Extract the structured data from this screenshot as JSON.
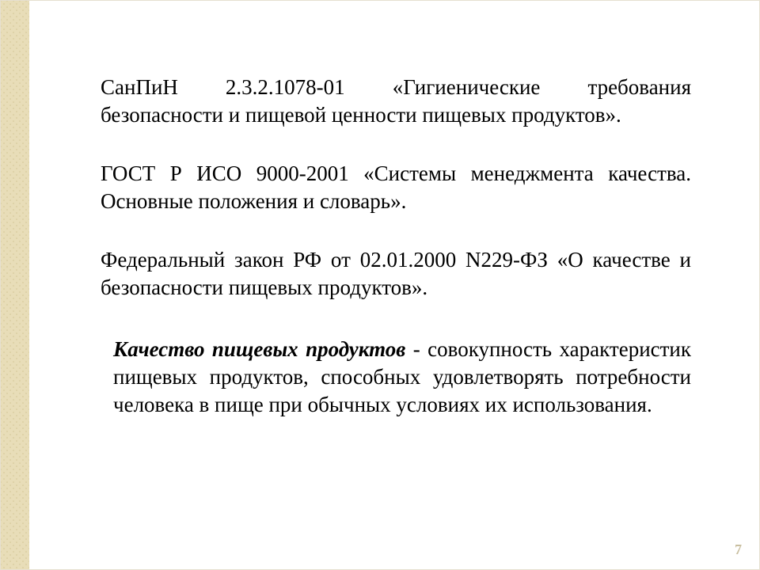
{
  "slide": {
    "sidebar_color": "#e8ddb8",
    "background_color": "#ffffff",
    "border_color": "#e6e0d0",
    "page_number": "7",
    "page_number_color": "#c9bfa0",
    "font_family": "Times New Roman",
    "body_fontsize_pt": 27,
    "text_color": "#000000"
  },
  "paragraphs": {
    "p1": "СанПиН 2.3.2.1078-01 «Гигиенические требования безопасности и пищевой ценности пищевых продуктов».",
    "p2": "ГОСТ Р ИСО 9000-2001 «Системы менеджмента качества. Основные положения и словарь».",
    "p3": "Федеральный закон РФ от 02.01.2000 N229-ФЗ «О качестве и безопасности пищевых продуктов».",
    "def_term": "Качество пищевых продуктов",
    "def_rest": " - совокупность характеристик пищевых продуктов, способных удовлетворять потребности человека в пище при обычных условиях их использования."
  }
}
